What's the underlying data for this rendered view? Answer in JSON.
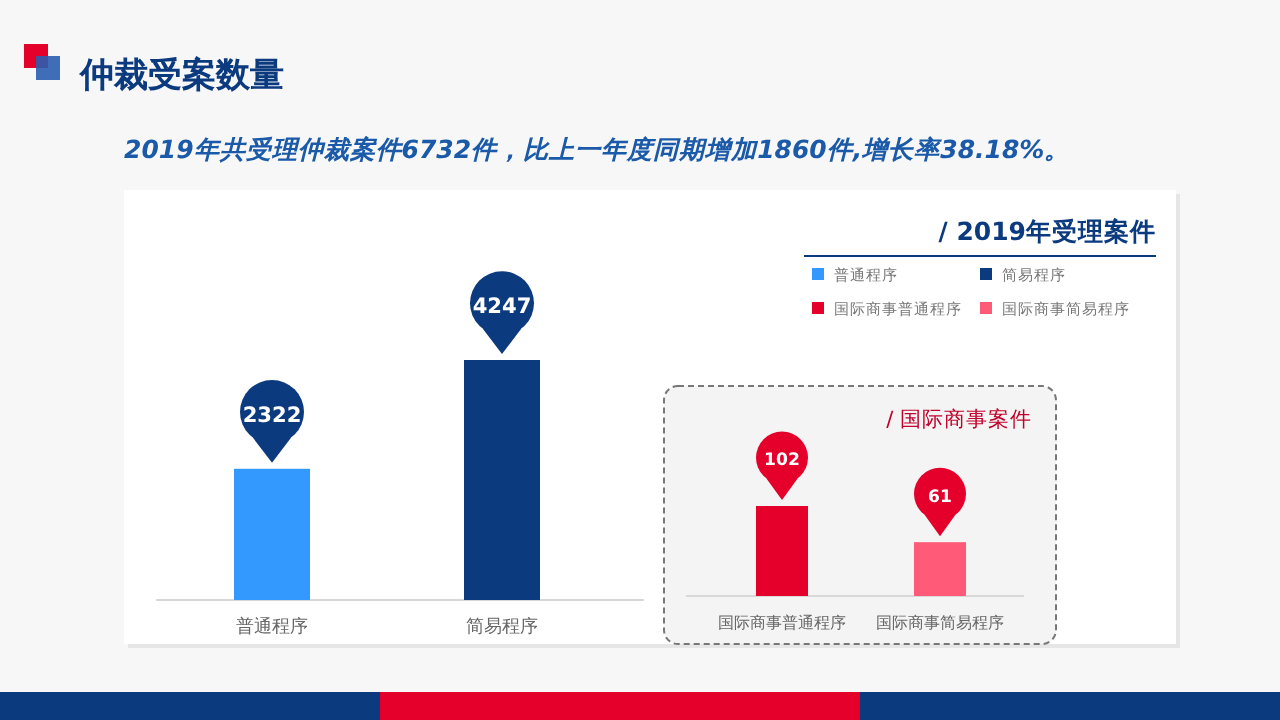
{
  "chart_data": [
    {
      "type": "bar",
      "annotations": [
        "仲裁受案数量",
        "2019年共受理仲裁案件6732件，比上一年度同期增加1860件,增长率38.18%。",
        "/ 2019年受理案件"
      ],
      "categories": [
        "普通程序",
        "简易程序"
      ],
      "legend": "top right",
      "data_labels": true,
      "series": [
        {
          "name": "普通程序",
          "color": "#3399ff",
          "values": [
            2322,
            null
          ]
        },
        {
          "name": "简易程序",
          "color": "#0b3a7e",
          "values": [
            null,
            4247
          ]
        }
      ]
    },
    {
      "type": "bar",
      "title": "/ 国际商事案件",
      "categories": [
        "国际商事普通程序",
        "国际商事简易程序"
      ],
      "legend": "top right",
      "data_labels": true,
      "series": [
        {
          "name": "国际商事普通程序",
          "color": "#e4002b",
          "values": [
            102,
            null
          ]
        },
        {
          "name": "国际商事简易程序",
          "color": "#ff5a78",
          "values": [
            null,
            61
          ]
        }
      ]
    }
  ]
}
